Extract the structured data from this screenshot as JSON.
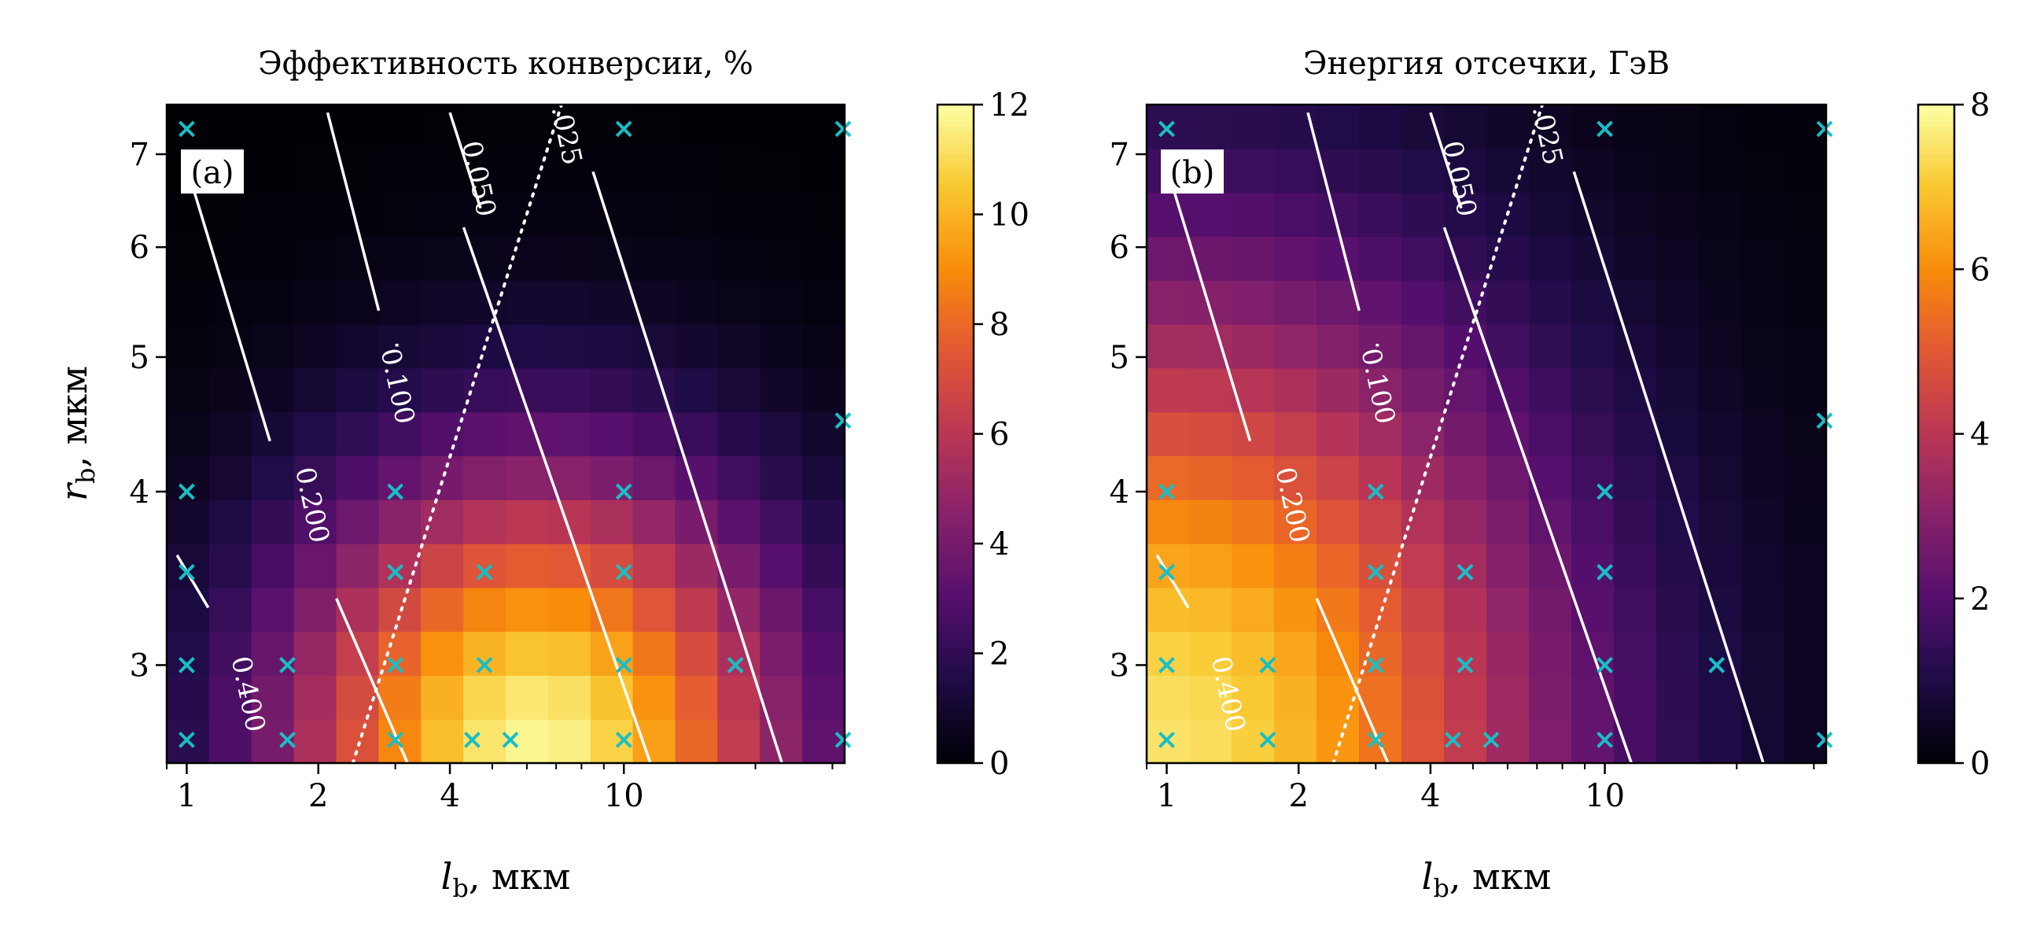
{
  "chart_data": [
    {
      "type": "heatmap",
      "panel_label": "(a)",
      "title": "Эффективность конверсии, %",
      "xlabel": "l_b, мкм",
      "xlabel_main": "l",
      "xlabel_sub": "b",
      "xlabel_unit": ", мкм",
      "ylabel": "r_b, мкм",
      "ylabel_main": "r",
      "ylabel_sub": "b",
      "ylabel_unit": ", мкм",
      "x_scale": "log",
      "y_scale": "log",
      "xlim": [
        0.9,
        32
      ],
      "ylim": [
        2.55,
        7.6
      ],
      "x_ticks": [
        1,
        2,
        4,
        10
      ],
      "y_ticks": [
        3,
        4,
        5,
        6,
        7
      ],
      "colormap": "inferno",
      "colorbar": {
        "min": 0,
        "max": 12,
        "ticks": [
          0,
          2,
          4,
          6,
          8,
          10,
          12
        ]
      },
      "value_model": {
        "peak": 11.8,
        "peak_x": 6.3,
        "peak_y": 2.6,
        "scale_x": 0.95,
        "scale_y": 0.33
      },
      "contours": [
        {
          "label": "0.025",
          "style": "dotted"
        },
        {
          "label": "0.050",
          "style": "solid"
        },
        {
          "label": "0.100",
          "style": "solid"
        },
        {
          "label": "0.200",
          "style": "solid"
        },
        {
          "label": "0.400",
          "style": "solid"
        }
      ],
      "markers": [
        {
          "x": 1,
          "y": 7.3
        },
        {
          "x": 10,
          "y": 7.3
        },
        {
          "x": 32,
          "y": 7.3
        },
        {
          "x": 32,
          "y": 4.5
        },
        {
          "x": 1,
          "y": 4
        },
        {
          "x": 3,
          "y": 4
        },
        {
          "x": 10,
          "y": 4
        },
        {
          "x": 1,
          "y": 3.5
        },
        {
          "x": 3,
          "y": 3.5
        },
        {
          "x": 4.8,
          "y": 3.5
        },
        {
          "x": 10,
          "y": 3.5
        },
        {
          "x": 1,
          "y": 3
        },
        {
          "x": 1.7,
          "y": 3
        },
        {
          "x": 3,
          "y": 3
        },
        {
          "x": 4.8,
          "y": 3
        },
        {
          "x": 10,
          "y": 3
        },
        {
          "x": 18,
          "y": 3
        },
        {
          "x": 1,
          "y": 2.65
        },
        {
          "x": 1.7,
          "y": 2.65
        },
        {
          "x": 3,
          "y": 2.65
        },
        {
          "x": 4.5,
          "y": 2.65
        },
        {
          "x": 5.5,
          "y": 2.65
        },
        {
          "x": 10,
          "y": 2.65
        },
        {
          "x": 32,
          "y": 2.65
        }
      ]
    },
    {
      "type": "heatmap",
      "panel_label": "(b)",
      "title": "Энергия отсечки, ГэВ",
      "xlabel": "l_b, мкм",
      "xlabel_main": "l",
      "xlabel_sub": "b",
      "xlabel_unit": ", мкм",
      "ylabel": "",
      "x_scale": "log",
      "y_scale": "log",
      "xlim": [
        0.9,
        32
      ],
      "ylim": [
        2.55,
        7.6
      ],
      "x_ticks": [
        1,
        2,
        4,
        10
      ],
      "y_ticks": [
        3,
        4,
        5,
        6,
        7
      ],
      "colormap": "inferno",
      "colorbar": {
        "min": 0,
        "max": 8,
        "ticks": [
          0,
          2,
          4,
          6,
          8
        ]
      },
      "value_model": {
        "peak": 7.5,
        "peak_x": 1.0,
        "peak_y": 2.6,
        "scale_x": 1.45,
        "scale_y": 0.55
      },
      "contours": [
        {
          "label": "0.025",
          "style": "dotted"
        },
        {
          "label": "0.050",
          "style": "solid"
        },
        {
          "label": "0.100",
          "style": "solid"
        },
        {
          "label": "0.200",
          "style": "solid"
        },
        {
          "label": "0.400",
          "style": "solid"
        }
      ],
      "markers": [
        {
          "x": 1,
          "y": 7.3
        },
        {
          "x": 10,
          "y": 7.3
        },
        {
          "x": 32,
          "y": 7.3
        },
        {
          "x": 32,
          "y": 4.5
        },
        {
          "x": 1,
          "y": 4
        },
        {
          "x": 3,
          "y": 4
        },
        {
          "x": 10,
          "y": 4
        },
        {
          "x": 1,
          "y": 3.5
        },
        {
          "x": 3,
          "y": 3.5
        },
        {
          "x": 4.8,
          "y": 3.5
        },
        {
          "x": 10,
          "y": 3.5
        },
        {
          "x": 1,
          "y": 3
        },
        {
          "x": 1.7,
          "y": 3
        },
        {
          "x": 3,
          "y": 3
        },
        {
          "x": 4.8,
          "y": 3
        },
        {
          "x": 10,
          "y": 3
        },
        {
          "x": 18,
          "y": 3
        },
        {
          "x": 1,
          "y": 2.65
        },
        {
          "x": 1.7,
          "y": 2.65
        },
        {
          "x": 3,
          "y": 2.65
        },
        {
          "x": 4.5,
          "y": 2.65
        },
        {
          "x": 5.5,
          "y": 2.65
        },
        {
          "x": 10,
          "y": 2.65
        },
        {
          "x": 32,
          "y": 2.65
        }
      ]
    }
  ]
}
